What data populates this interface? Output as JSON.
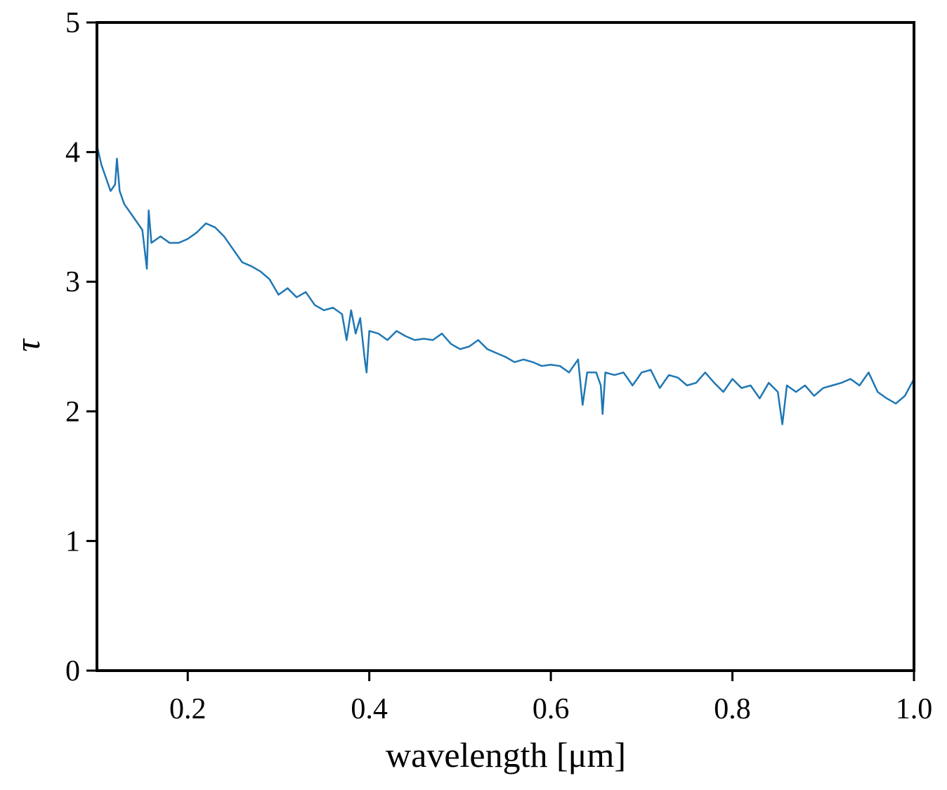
{
  "chart_data": {
    "type": "line",
    "xlabel": "wavelength [μm]",
    "ylabel": "τ",
    "color": "#1f77b4",
    "x": [
      0.1,
      0.105,
      0.11,
      0.115,
      0.12,
      0.122,
      0.125,
      0.13,
      0.135,
      0.14,
      0.145,
      0.15,
      0.155,
      0.157,
      0.16,
      0.17,
      0.18,
      0.19,
      0.2,
      0.21,
      0.22,
      0.23,
      0.24,
      0.25,
      0.26,
      0.27,
      0.28,
      0.29,
      0.3,
      0.31,
      0.32,
      0.33,
      0.34,
      0.35,
      0.36,
      0.37,
      0.375,
      0.38,
      0.385,
      0.39,
      0.395,
      0.397,
      0.4,
      0.41,
      0.42,
      0.43,
      0.44,
      0.45,
      0.46,
      0.47,
      0.48,
      0.49,
      0.5,
      0.51,
      0.52,
      0.53,
      0.54,
      0.55,
      0.56,
      0.57,
      0.58,
      0.59,
      0.6,
      0.61,
      0.62,
      0.63,
      0.635,
      0.64,
      0.65,
      0.655,
      0.657,
      0.66,
      0.67,
      0.68,
      0.69,
      0.7,
      0.71,
      0.72,
      0.73,
      0.74,
      0.75,
      0.76,
      0.77,
      0.78,
      0.79,
      0.8,
      0.81,
      0.82,
      0.83,
      0.84,
      0.85,
      0.855,
      0.86,
      0.87,
      0.88,
      0.89,
      0.9,
      0.91,
      0.92,
      0.93,
      0.94,
      0.95,
      0.96,
      0.97,
      0.98,
      0.99,
      1.0
    ],
    "values": [
      4.05,
      3.9,
      3.8,
      3.7,
      3.75,
      3.95,
      3.7,
      3.6,
      3.55,
      3.5,
      3.45,
      3.4,
      3.1,
      3.55,
      3.3,
      3.35,
      3.3,
      3.3,
      3.33,
      3.38,
      3.45,
      3.42,
      3.35,
      3.25,
      3.15,
      3.12,
      3.08,
      3.02,
      2.9,
      2.95,
      2.88,
      2.92,
      2.82,
      2.78,
      2.8,
      2.75,
      2.55,
      2.78,
      2.6,
      2.72,
      2.4,
      2.3,
      2.62,
      2.6,
      2.55,
      2.62,
      2.58,
      2.55,
      2.56,
      2.55,
      2.6,
      2.52,
      2.48,
      2.5,
      2.55,
      2.48,
      2.45,
      2.42,
      2.38,
      2.4,
      2.38,
      2.35,
      2.36,
      2.35,
      2.3,
      2.4,
      2.05,
      2.3,
      2.3,
      2.2,
      1.98,
      2.3,
      2.28,
      2.3,
      2.2,
      2.3,
      2.32,
      2.18,
      2.28,
      2.26,
      2.2,
      2.22,
      2.3,
      2.22,
      2.15,
      2.25,
      2.18,
      2.2,
      2.1,
      2.22,
      2.15,
      1.9,
      2.2,
      2.15,
      2.2,
      2.12,
      2.18,
      2.2,
      2.22,
      2.25,
      2.2,
      2.3,
      2.15,
      2.1,
      2.06,
      2.12,
      2.25
    ],
    "xlim": [
      0.1,
      1.0
    ],
    "ylim": [
      0,
      5
    ],
    "xticks": [
      0.2,
      0.4,
      0.6,
      0.8,
      {
        "value": 1,
        "label": "1.0"
      }
    ],
    "yticks": [
      0,
      1,
      2,
      3,
      4,
      5
    ]
  }
}
